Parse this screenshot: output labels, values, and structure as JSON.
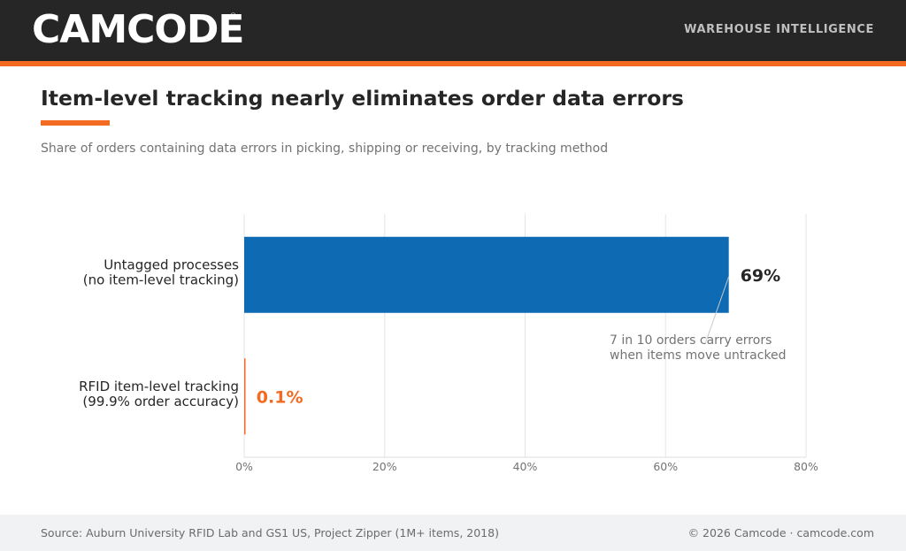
{
  "header": {
    "logo_text": "CAMCODE",
    "logo_mark": "®",
    "tagline": "WAREHOUSE INTELLIGENCE"
  },
  "colors": {
    "header_bg": "#262626",
    "accent": "#f26b21",
    "bar_primary": "#0e6bb3",
    "bar_highlight": "#f26b21"
  },
  "chart_data": {
    "type": "bar",
    "orientation": "horizontal",
    "title": "Item-level tracking nearly eliminates order data errors",
    "subtitle": "Share of orders containing data errors in picking, shipping or receiving, by tracking method",
    "categories": [
      [
        "Untagged processes",
        "(no item-level tracking)"
      ],
      [
        "RFID item-level tracking",
        "(99.9% order accuracy)"
      ]
    ],
    "values": [
      69,
      0.1
    ],
    "value_labels": [
      "69%",
      "0.1%"
    ],
    "xlim": [
      0,
      80
    ],
    "xticks": [
      0,
      20,
      40,
      60,
      80
    ],
    "xtick_labels": [
      "0%",
      "20%",
      "40%",
      "60%",
      "80%"
    ],
    "grid": true,
    "annotation": {
      "lines": [
        "7 in 10 orders carry errors",
        "when items move untracked"
      ],
      "points_to": 0
    }
  },
  "footer": {
    "source": "Source: Auburn University RFID Lab and GS1 US, Project Zipper (1M+ items, 2018)",
    "copyright": "© 2026 Camcode · camcode.com"
  }
}
